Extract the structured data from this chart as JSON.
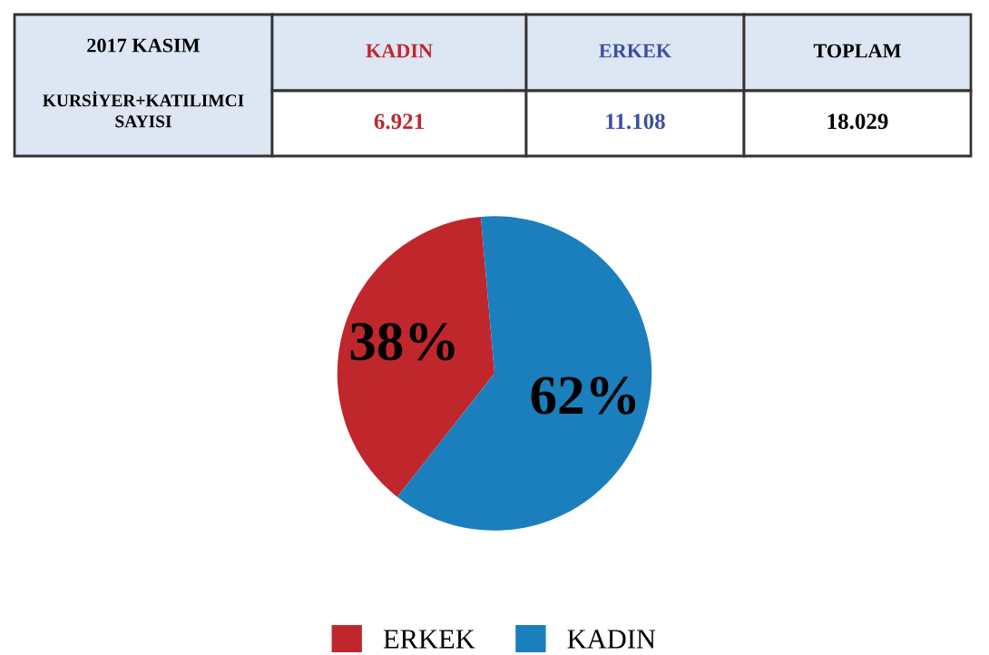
{
  "chart_data": [
    {
      "type": "other",
      "annotations": [
        "2017 KASIM",
        "KURSİYER+KATILIMCI\nSAYISI",
        "KADIN",
        "ERKEK",
        "TOPLAM",
        "6.921",
        "11.108",
        "18.029"
      ]
    },
    {
      "type": "pie",
      "categories": [
        "ERKEK",
        "KADIN"
      ],
      "values": [
        38,
        62
      ],
      "colors": [
        "#c0272d",
        "#1b7fbd"
      ],
      "value_labels": [
        "38%",
        "62%"
      ],
      "legend": "bottom"
    }
  ]
}
